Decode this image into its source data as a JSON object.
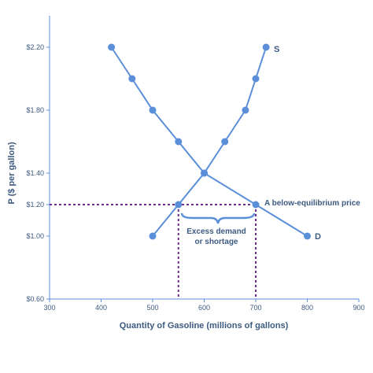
{
  "chart_data": {
    "type": "line",
    "xlabel": "Quantity of Gasoline (millions of gallons)",
    "ylabel": "P ($ per gallon)",
    "xlim": [
      300,
      900
    ],
    "ylim": [
      0.6,
      2.4
    ],
    "x_ticks": [
      300,
      400,
      500,
      600,
      700,
      800,
      900
    ],
    "x_tick_labels": [
      "300",
      "400",
      "500",
      "600",
      "700",
      "800",
      "900"
    ],
    "y_ticks": [
      0.6,
      1.0,
      1.2,
      1.4,
      1.8,
      2.2
    ],
    "y_tick_labels": [
      "$0.60",
      "$1.00",
      "$1.20",
      "$1.40",
      "$1.80",
      "$2.20"
    ],
    "grid": false,
    "series": [
      {
        "name": "S",
        "color": "#5b8fd9",
        "points": [
          {
            "x": 500,
            "y": 1.0
          },
          {
            "x": 550,
            "y": 1.2
          },
          {
            "x": 600,
            "y": 1.4
          },
          {
            "x": 640,
            "y": 1.6
          },
          {
            "x": 680,
            "y": 1.8
          },
          {
            "x": 700,
            "y": 2.0
          },
          {
            "x": 720,
            "y": 2.2
          }
        ]
      },
      {
        "name": "D",
        "color": "#5b8fd9",
        "points": [
          {
            "x": 420,
            "y": 2.2
          },
          {
            "x": 460,
            "y": 2.0
          },
          {
            "x": 500,
            "y": 1.8
          },
          {
            "x": 550,
            "y": 1.6
          },
          {
            "x": 600,
            "y": 1.4
          },
          {
            "x": 700,
            "y": 1.2
          },
          {
            "x": 800,
            "y": 1.0
          }
        ]
      }
    ],
    "price_floor_line": {
      "y": 1.2,
      "x_from": 300,
      "x_to": 700,
      "color": "#6b2d8c"
    },
    "shortage_drops": [
      {
        "x": 550,
        "y": 1.2
      },
      {
        "x": 700,
        "y": 1.2
      }
    ],
    "annotations": {
      "below_equilibrium": "A below-equilibrium price",
      "shortage_line1": "Excess demand",
      "shortage_line2": "or shortage"
    }
  }
}
